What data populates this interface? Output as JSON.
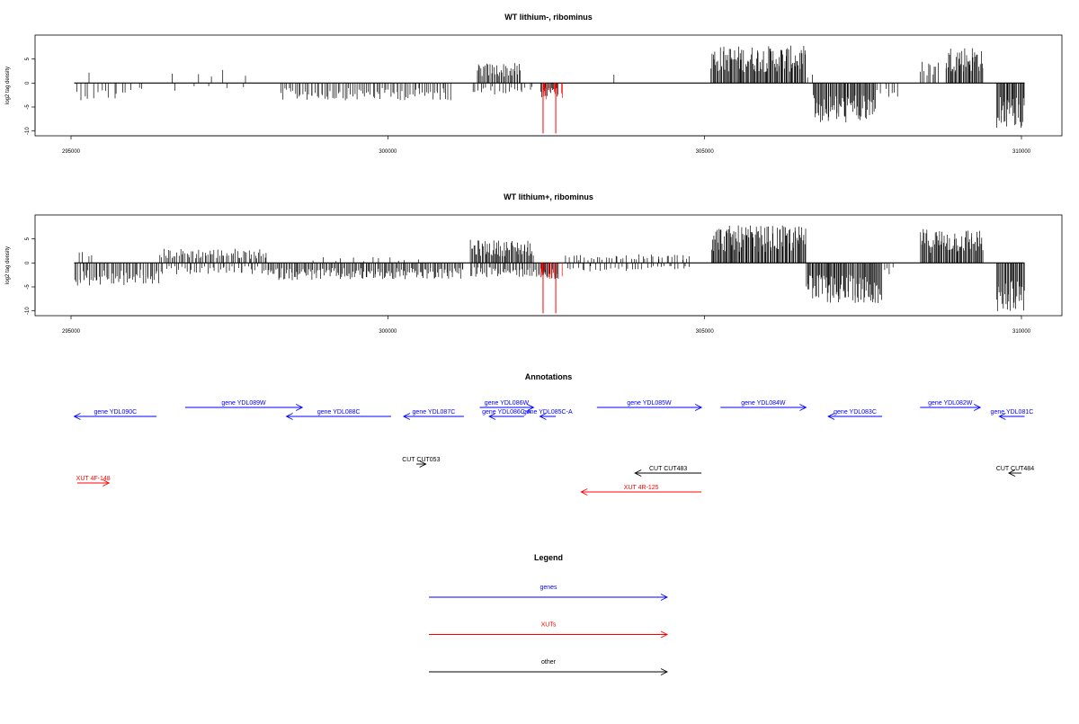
{
  "chart_data": [
    {
      "type": "bar",
      "title": "WT lithium-, ribominus",
      "ylabel": "log2 tag density",
      "xlim": [
        295000,
        310000
      ],
      "ylim": [
        -11,
        10
      ],
      "x_ticks": [
        "295000",
        "300000",
        "305000",
        "310000"
      ],
      "y_ticks": [
        "5",
        "0",
        "-5",
        "-10"
      ],
      "series": [
        {
          "segments": [
            {
              "start": 295050,
              "end": 295900,
              "value": -3.0,
              "density": 0.22
            },
            {
              "start": 295100,
              "end": 295300,
              "value": 2.0,
              "density": 0.08
            },
            {
              "start": 295900,
              "end": 296200,
              "value": -2.0,
              "density": 0.15
            },
            {
              "start": 296500,
              "end": 297800,
              "value": 2.5,
              "density": 0.06
            },
            {
              "start": 296500,
              "end": 297800,
              "value": -1.5,
              "density": 0.05
            },
            {
              "start": 298300,
              "end": 301000,
              "value": -3.0,
              "density": 0.45
            },
            {
              "start": 301400,
              "end": 302100,
              "value": 3.5,
              "density": 0.75
            },
            {
              "start": 301300,
              "end": 302300,
              "value": -2.0,
              "density": 0.3
            },
            {
              "start": 302400,
              "end": 302700,
              "value": -2.5,
              "density": 0.8
            },
            {
              "start": 303500,
              "end": 303600,
              "value": 2.5,
              "density": 0.05
            },
            {
              "start": 305100,
              "end": 306600,
              "value": 6.5,
              "density": 1.0
            },
            {
              "start": 306600,
              "end": 306700,
              "value": 1.5,
              "density": 0.3
            },
            {
              "start": 306700,
              "end": 307700,
              "value": -7.0,
              "density": 0.95
            },
            {
              "start": 307700,
              "end": 308100,
              "value": -2.5,
              "density": 0.25
            },
            {
              "start": 308400,
              "end": 308700,
              "value": 4.0,
              "density": 0.45
            },
            {
              "start": 308800,
              "end": 309400,
              "value": 6.5,
              "density": 1.0
            },
            {
              "start": 309600,
              "end": 310050,
              "value": -8.0,
              "density": 1.0
            }
          ]
        }
      ],
      "highlights": [
        {
          "x": 302450,
          "value": -10.5
        },
        {
          "x": 302650,
          "value": -10.5
        }
      ]
    },
    {
      "type": "bar",
      "title": "WT lithium+, ribominus",
      "ylabel": "log2 tag density",
      "xlim": [
        295000,
        310000
      ],
      "ylim": [
        -11,
        10
      ],
      "x_ticks": [
        "295000",
        "300000",
        "305000",
        "310000"
      ],
      "y_ticks": [
        "5",
        "0",
        "-5",
        "-10"
      ],
      "series": [
        {
          "segments": [
            {
              "start": 295050,
              "end": 296400,
              "value": -4.0,
              "density": 0.6
            },
            {
              "start": 295100,
              "end": 295400,
              "value": 2.0,
              "density": 0.2
            },
            {
              "start": 296400,
              "end": 298100,
              "value": 2.5,
              "density": 0.55
            },
            {
              "start": 296400,
              "end": 298100,
              "value": -2.0,
              "density": 0.35
            },
            {
              "start": 298100,
              "end": 301200,
              "value": -3.0,
              "density": 0.7
            },
            {
              "start": 298800,
              "end": 300500,
              "value": 1.0,
              "density": 0.1
            },
            {
              "start": 301300,
              "end": 302300,
              "value": 4.0,
              "density": 0.9
            },
            {
              "start": 301300,
              "end": 302500,
              "value": -2.5,
              "density": 0.6
            },
            {
              "start": 302400,
              "end": 302700,
              "value": -3.0,
              "density": 0.9
            },
            {
              "start": 302800,
              "end": 304800,
              "value": 1.5,
              "density": 0.3
            },
            {
              "start": 302800,
              "end": 304800,
              "value": -1.5,
              "density": 0.25
            },
            {
              "start": 305100,
              "end": 306600,
              "value": 6.5,
              "density": 1.0
            },
            {
              "start": 306600,
              "end": 307800,
              "value": -7.0,
              "density": 1.0
            },
            {
              "start": 307800,
              "end": 308000,
              "value": -2.0,
              "density": 0.3
            },
            {
              "start": 308400,
              "end": 309400,
              "value": 6.0,
              "density": 1.0
            },
            {
              "start": 309600,
              "end": 310050,
              "value": -8.5,
              "density": 1.0
            }
          ]
        }
      ],
      "highlights": [
        {
          "x": 302450,
          "value": -10.5
        },
        {
          "x": 302650,
          "value": -10.5
        }
      ]
    }
  ],
  "annotations_title": "Annotations",
  "annotations": [
    {
      "label": "gene YDL090C",
      "start": 295050,
      "end": 296350,
      "dir": "left",
      "color": "#0000ff",
      "row": 1
    },
    {
      "label": "gene YDL089W",
      "start": 296800,
      "end": 298650,
      "dir": "right",
      "color": "#0000ff",
      "row": 0
    },
    {
      "label": "gene YDL088C",
      "start": 298400,
      "end": 300050,
      "dir": "left",
      "color": "#0000ff",
      "row": 1
    },
    {
      "label": "gene YDL087C",
      "start": 300250,
      "end": 301200,
      "dir": "left",
      "color": "#0000ff",
      "row": 1
    },
    {
      "label": "gene YDL086W",
      "start": 301450,
      "end": 302300,
      "dir": "right",
      "color": "#0000ff",
      "row": 0
    },
    {
      "label": "gene YDL086C-A",
      "start": 301600,
      "end": 302150,
      "dir": "left",
      "color": "#0000ff",
      "row": 1
    },
    {
      "label": "gene YDL085C-A",
      "start": 302400,
      "end": 302650,
      "dir": "left",
      "color": "#0000ff",
      "row": 1
    },
    {
      "label": "gene YDL085W",
      "start": 303300,
      "end": 304950,
      "dir": "right",
      "color": "#0000ff",
      "row": 0
    },
    {
      "label": "gene YDL084W",
      "start": 305250,
      "end": 306600,
      "dir": "right",
      "color": "#0000ff",
      "row": 0
    },
    {
      "label": "gene YDL083C",
      "start": 306950,
      "end": 307800,
      "dir": "left",
      "color": "#0000ff",
      "row": 1
    },
    {
      "label": "gene YDL082W",
      "start": 308400,
      "end": 309350,
      "dir": "right",
      "color": "#0000ff",
      "row": 0
    },
    {
      "label": "gene YDL081C",
      "start": 309650,
      "end": 310050,
      "dir": "left",
      "color": "#0000ff",
      "row": 1
    },
    {
      "label": "CUT CUT053",
      "start": 300450,
      "end": 300600,
      "dir": "right",
      "color": "#000000",
      "row": 2
    },
    {
      "label": "CUT CUT483",
      "start": 303900,
      "end": 304950,
      "dir": "left",
      "color": "#000000",
      "row": 3
    },
    {
      "label": "CUT CUT484",
      "start": 309800,
      "end": 310000,
      "dir": "left",
      "color": "#000000",
      "row": 3
    },
    {
      "label": "XUT 4F-148",
      "start": 295100,
      "end": 295600,
      "dir": "right",
      "color": "#ff0000",
      "row": 4
    },
    {
      "label": "XUT 4R-125",
      "start": 303050,
      "end": 304950,
      "dir": "left",
      "color": "#ff0000",
      "row": 5
    }
  ],
  "legend_title": "Legend",
  "legend": [
    {
      "label": "genes",
      "color": "#0000ff"
    },
    {
      "label": "XUTs",
      "color": "#ff0000"
    },
    {
      "label": "other",
      "color": "#000000"
    }
  ]
}
